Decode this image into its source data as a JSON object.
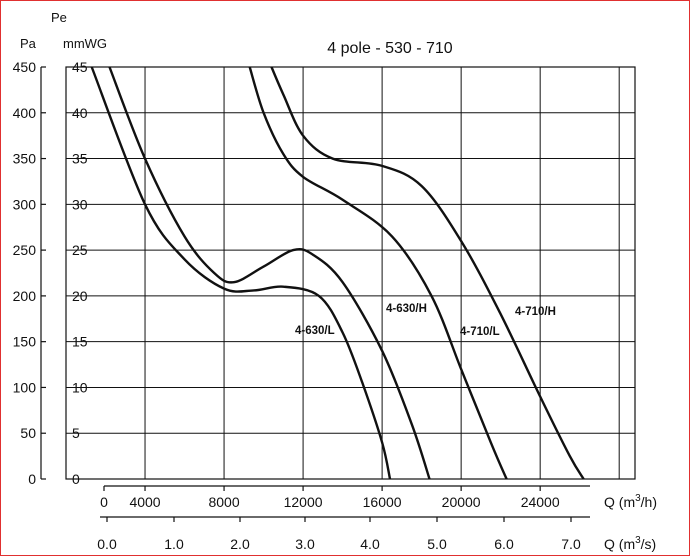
{
  "chart_data": {
    "type": "line",
    "title": "4 pole - 530 - 710",
    "left_axis_1": {
      "label": "Pa",
      "ticks": [
        0,
        50,
        100,
        150,
        200,
        250,
        300,
        350,
        400,
        450
      ],
      "range": [
        0,
        450
      ]
    },
    "left_axis_2": {
      "label_top": "Pe",
      "label": "mmWG",
      "ticks": [
        0,
        5,
        10,
        15,
        20,
        25,
        30,
        35,
        40,
        45
      ]
    },
    "x_axis_1": {
      "label": "Q (m",
      "sup": "3",
      "suffix": "/h)",
      "ticks": [
        0,
        4000,
        8000,
        12000,
        16000,
        20000,
        24000
      ],
      "range": [
        0,
        28800
      ]
    },
    "x_axis_2": {
      "label": "Q (m",
      "sup": "3",
      "suffix": "/s)",
      "ticks": [
        "0.0",
        "1.0",
        "2.0",
        "3.0",
        "4.0",
        "5.0",
        "6.0",
        "7.0"
      ]
    },
    "grid": true,
    "series": [
      {
        "name": "4-630/L",
        "points": [
          [
            1300,
            450
          ],
          [
            4000,
            300
          ],
          [
            6000,
            240
          ],
          [
            8000,
            208
          ],
          [
            9500,
            206
          ],
          [
            11000,
            210
          ],
          [
            12800,
            200
          ],
          [
            14000,
            160
          ],
          [
            15000,
            105
          ],
          [
            16000,
            40
          ],
          [
            16400,
            0
          ]
        ]
      },
      {
        "name": "4-630/H",
        "points": [
          [
            2200,
            450
          ],
          [
            4000,
            350
          ],
          [
            6000,
            265
          ],
          [
            7500,
            225
          ],
          [
            8500,
            215
          ],
          [
            10000,
            232
          ],
          [
            11500,
            250
          ],
          [
            12500,
            245
          ],
          [
            14000,
            215
          ],
          [
            16000,
            140
          ],
          [
            17500,
            60
          ],
          [
            18400,
            0
          ]
        ]
      },
      {
        "name": "4-710/L",
        "points": [
          [
            9300,
            450
          ],
          [
            10000,
            400
          ],
          [
            11000,
            355
          ],
          [
            12000,
            330
          ],
          [
            14000,
            305
          ],
          [
            16500,
            265
          ],
          [
            18500,
            200
          ],
          [
            20000,
            120
          ],
          [
            21500,
            40
          ],
          [
            22300,
            0
          ]
        ]
      },
      {
        "name": "4-710/H",
        "points": [
          [
            10400,
            450
          ],
          [
            11000,
            420
          ],
          [
            12000,
            375
          ],
          [
            13500,
            350
          ],
          [
            16000,
            342
          ],
          [
            18000,
            320
          ],
          [
            20000,
            260
          ],
          [
            22000,
            180
          ],
          [
            24000,
            90
          ],
          [
            25500,
            25
          ],
          [
            26200,
            0
          ]
        ]
      }
    ],
    "curve_labels": [
      "4-630/L",
      "4-630/H",
      "4-710/L",
      "4-710/H"
    ]
  }
}
